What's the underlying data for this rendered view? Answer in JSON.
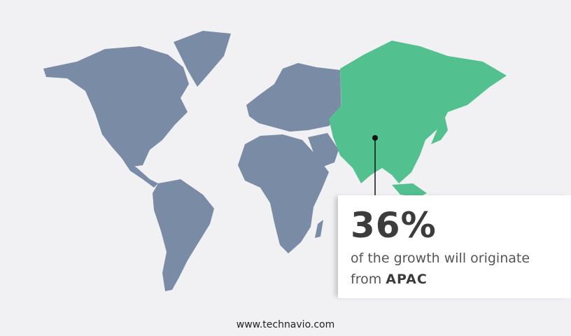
{
  "map": {
    "highlighted_region": "APAC",
    "colors": {
      "background": "#f1f1f4",
      "land": "#7a8ba6",
      "highlight": "#52c08f",
      "marker": "#111111"
    }
  },
  "callout": {
    "value": "36%",
    "text": "of the growth will originate",
    "from_label": "from",
    "region": "APAC"
  },
  "footer": {
    "website": "www.technavio.com"
  }
}
